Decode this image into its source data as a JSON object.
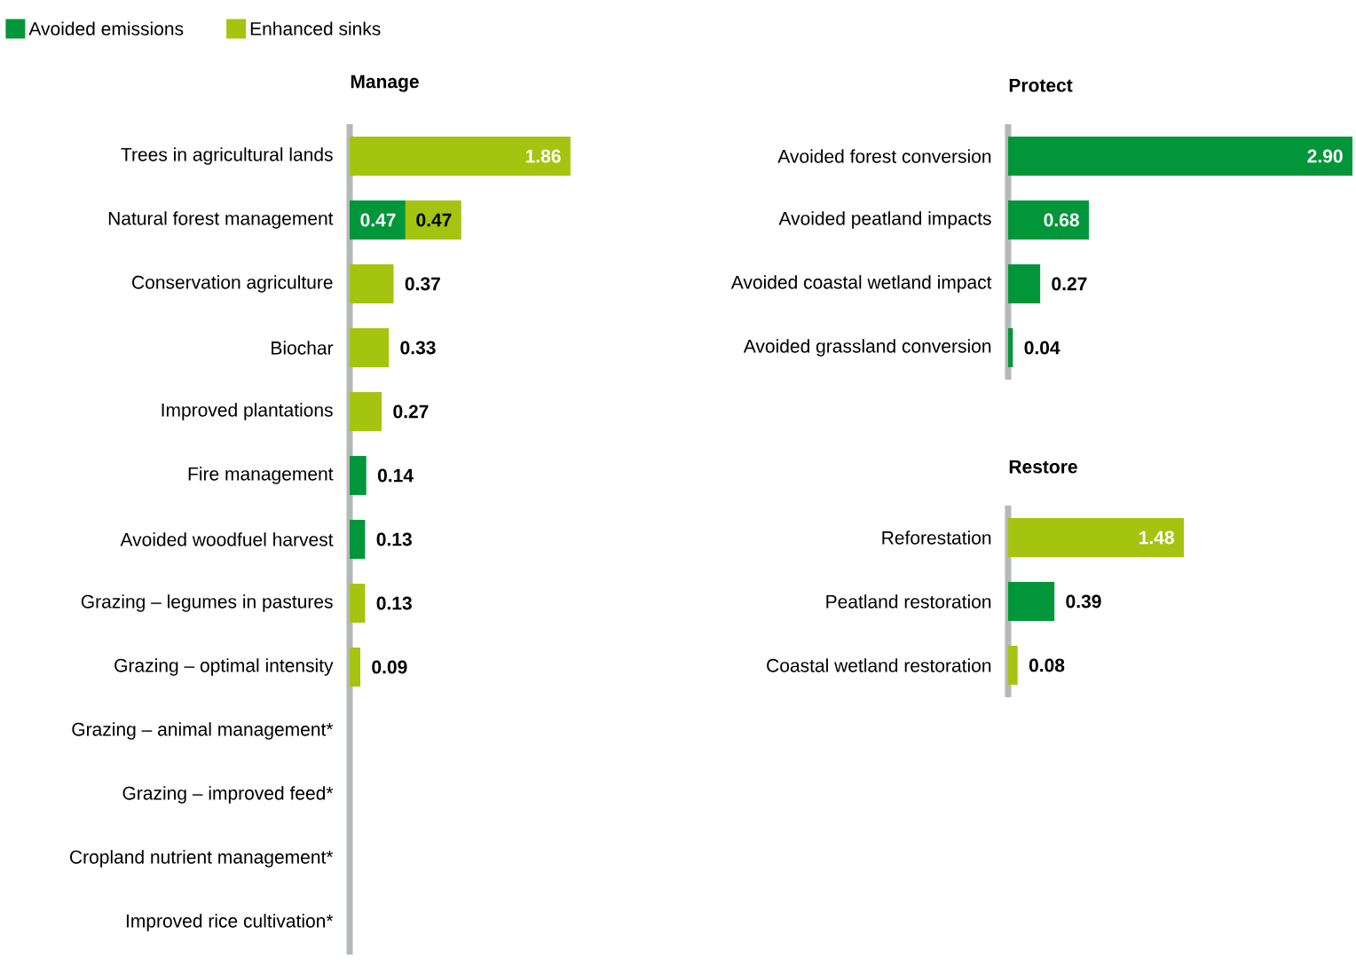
{
  "chart_data": [
    {
      "type": "bar",
      "orientation": "horizontal",
      "stacked": true,
      "title": "Manage",
      "legend": "top left",
      "categories": [
        "Trees in agricultural lands",
        "Natural forest management",
        "Conservation agriculture",
        "Biochar",
        "Improved plantations",
        "Fire management",
        "Avoided woodfuel harvest",
        "Grazing – legumes in pastures",
        "Grazing – optimal intensity",
        "Grazing – animal management*",
        "Grazing – improved feed*",
        "Cropland nutrient management*",
        "Improved rice cultivation*"
      ],
      "series": [
        {
          "name": "Avoided emissions",
          "color": "#009639",
          "values": [
            null,
            0.47,
            null,
            null,
            null,
            0.14,
            0.13,
            null,
            null,
            null,
            null,
            null,
            null
          ],
          "value_labels": [
            null,
            "0.47",
            null,
            null,
            null,
            "0.14",
            "0.13",
            null,
            null,
            null,
            null,
            null,
            null
          ]
        },
        {
          "name": "Enhanced sinks",
          "color": "#a5c40f",
          "values": [
            1.86,
            0.47,
            0.37,
            0.33,
            0.27,
            null,
            null,
            0.13,
            0.09,
            null,
            null,
            null,
            null
          ],
          "value_labels": [
            "1.86",
            "0.47",
            "0.37",
            "0.33",
            "0.27",
            null,
            null,
            "0.13",
            "0.09",
            null,
            null,
            null,
            null
          ]
        }
      ]
    },
    {
      "type": "bar",
      "orientation": "horizontal",
      "stacked": true,
      "title": "Protect",
      "categories": [
        "Avoided forest conversion",
        "Avoided peatland impacts",
        "Avoided coastal wetland impact",
        "Avoided grassland conversion"
      ],
      "series": [
        {
          "color": "#009639",
          "values": [
            2.9,
            0.68,
            0.27,
            0.04
          ],
          "value_labels": [
            "2.90",
            "0.68",
            "0.27",
            "0.04"
          ]
        }
      ]
    },
    {
      "type": "bar",
      "orientation": "horizontal",
      "stacked": true,
      "title": "Restore",
      "categories": [
        "Reforestation",
        "Peatland restoration",
        "Coastal wetland restoration"
      ],
      "series": [
        {
          "color": "#009639",
          "values": [
            null,
            0.39,
            null
          ],
          "value_labels": [
            null,
            "0.39",
            null
          ]
        },
        {
          "color": "#a5c40f",
          "values": [
            1.48,
            null,
            0.08
          ],
          "value_labels": [
            "1.48",
            null,
            "0.08"
          ]
        }
      ]
    }
  ]
}
